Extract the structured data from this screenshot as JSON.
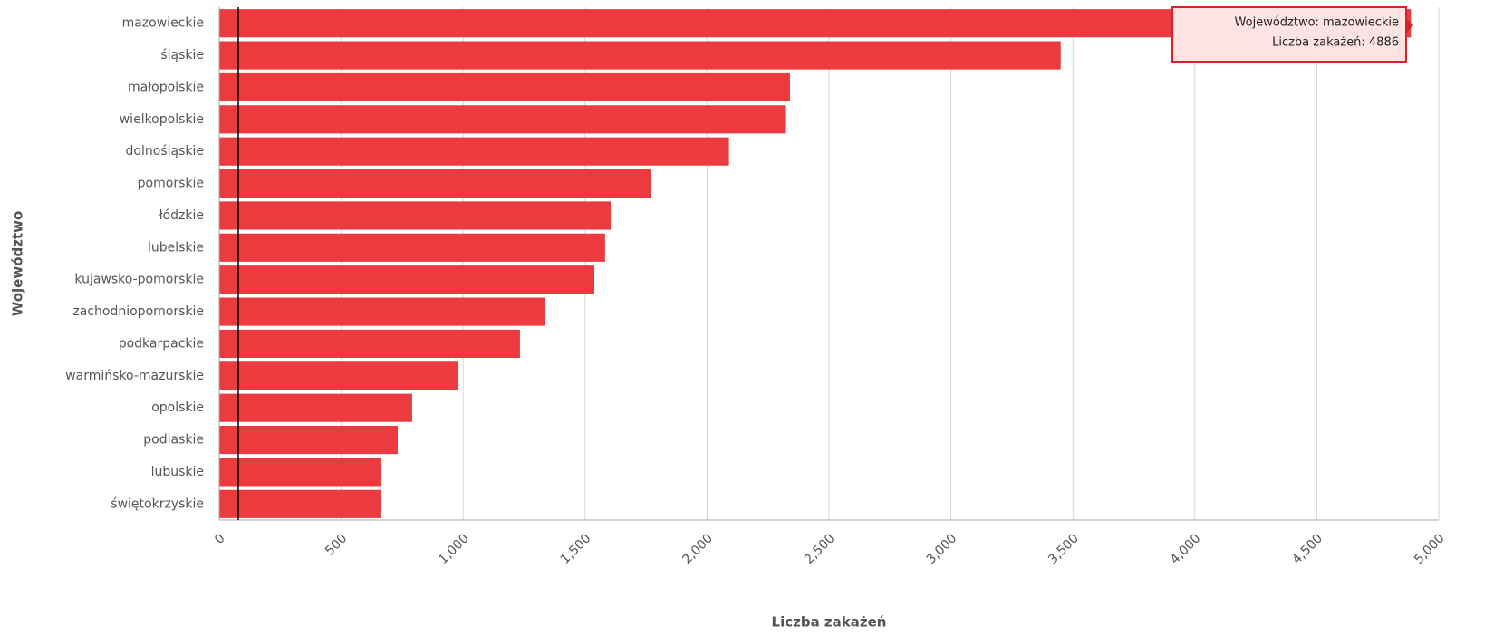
{
  "chart_data": {
    "type": "bar",
    "orientation": "horizontal",
    "x_label": "Liczba zakażeń",
    "y_label": "Województwo",
    "categories": [
      "mazowieckie",
      "śląskie",
      "małopolskie",
      "wielkopolskie",
      "dolnośląskie",
      "pomorskie",
      "łódzkie",
      "lubelskie",
      "kujawsko-pomorskie",
      "zachodniopomorskie",
      "podkarpackie",
      "warmińsko-mazurskie",
      "opolskie",
      "podlaskie",
      "lubuskie",
      "świętokrzyskie"
    ],
    "values": [
      4886,
      3450,
      2340,
      2320,
      2090,
      1770,
      1605,
      1582,
      1538,
      1337,
      1233,
      981,
      791,
      732,
      661,
      661
    ],
    "color": "#eb3b3e",
    "xlim": [
      0,
      5000
    ],
    "xticks": [
      0,
      {
        "value": 500,
        "label": "500"
      },
      {
        "value": 1000,
        "label": "1,000"
      },
      {
        "value": 1500,
        "label": "1,500"
      },
      {
        "value": 2000,
        "label": "2,000"
      },
      {
        "value": 2500,
        "label": "2,500"
      },
      {
        "value": 3000,
        "label": "3,000"
      },
      {
        "value": 3500,
        "label": "3,500"
      },
      {
        "value": 4000,
        "label": "4,000"
      },
      {
        "value": 4500,
        "label": "4,500"
      },
      {
        "value": 5000,
        "label": "5,000"
      }
    ],
    "grid": true,
    "tooltip": [
      "Województwo: mazowieckie",
      "Liczba zakażeń: 4886"
    ]
  }
}
